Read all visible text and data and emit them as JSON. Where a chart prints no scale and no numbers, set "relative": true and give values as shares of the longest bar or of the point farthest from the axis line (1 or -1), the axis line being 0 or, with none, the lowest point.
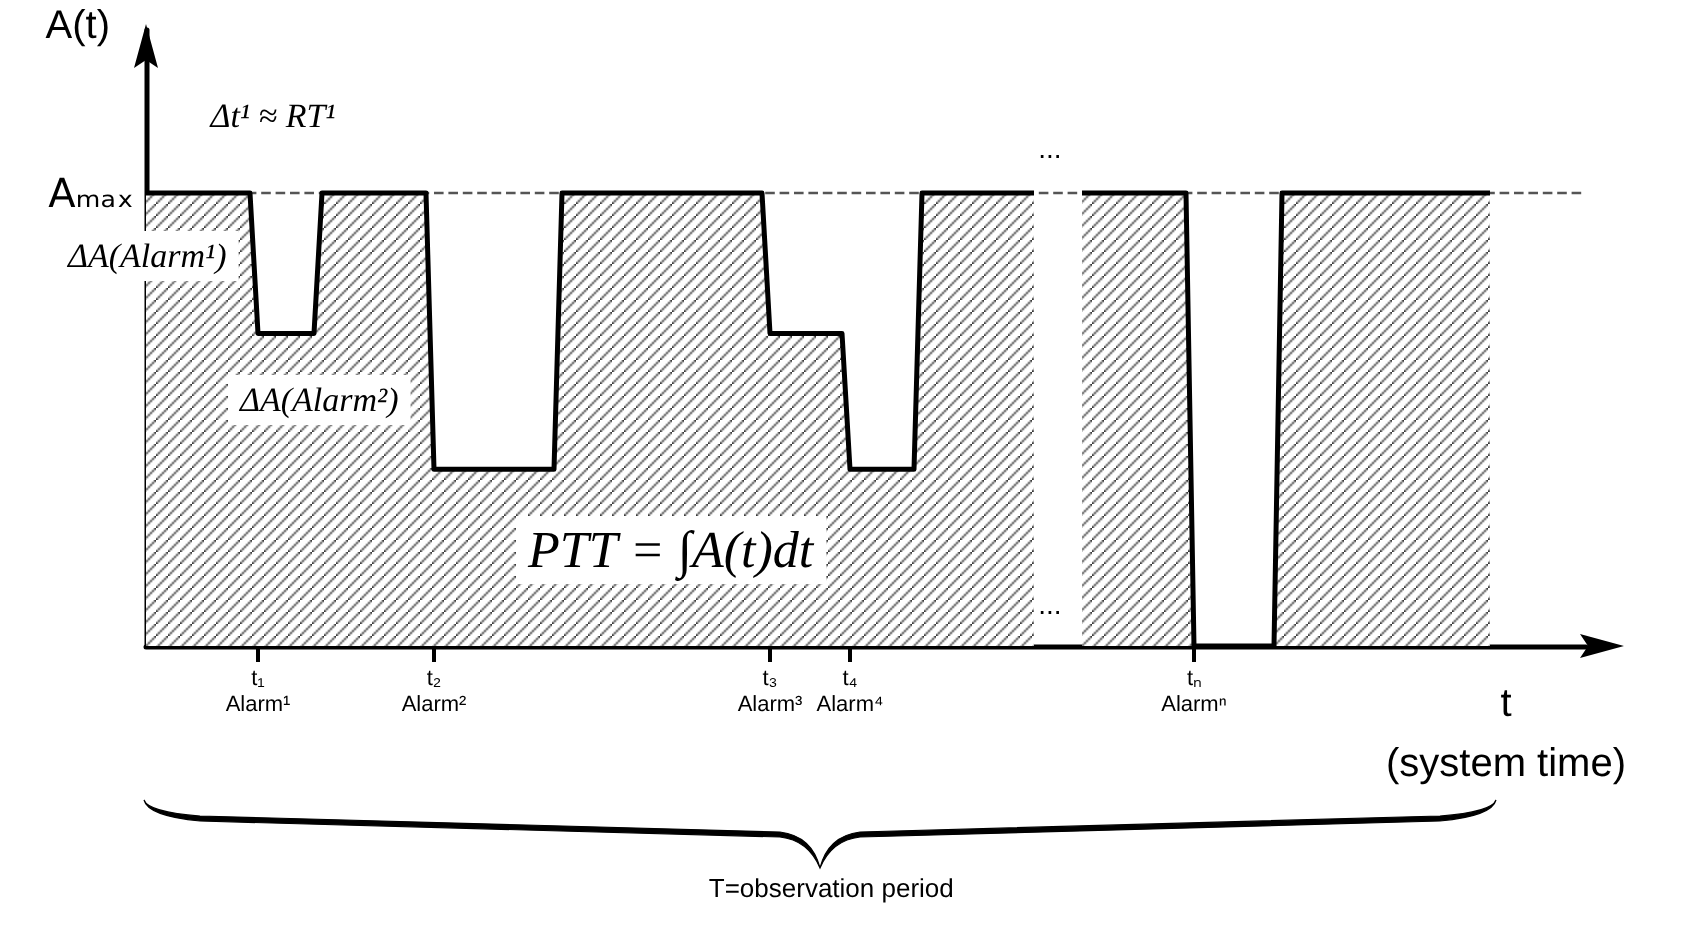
{
  "chart_data": {
    "type": "area",
    "relative": true,
    "ylabel": "A(t)",
    "xlabel": "t\n(system time)",
    "categories": [
      null,
      null,
      null,
      null,
      null,
      null,
      null,
      null,
      null,
      null,
      null,
      null,
      null,
      null,
      "t₁\nAlarm¹",
      null,
      null,
      null,
      null,
      null,
      null,
      null,
      null,
      null,
      null,
      null,
      null,
      null,
      null,
      null,
      null,
      null,
      null,
      null,
      null,
      null,
      "t₂\nAlarm²",
      null,
      null,
      null,
      null,
      null,
      null,
      null,
      null,
      null,
      null,
      null,
      null,
      null,
      null,
      null,
      null,
      null,
      null,
      null,
      null,
      null,
      null,
      null,
      null,
      null,
      null,
      null,
      null,
      null,
      null,
      null,
      null,
      null,
      null,
      null,
      null,
      null,
      null,
      null,
      null,
      null,
      "t₃\nAlarm³",
      null,
      null,
      null,
      null,
      null,
      null,
      null,
      null,
      null,
      "t₄\nAlarm⁴",
      null,
      null,
      null,
      null,
      null,
      null,
      null,
      null,
      null,
      null,
      null,
      null,
      null,
      null,
      null,
      null,
      null,
      null,
      null,
      null,
      null,
      null,
      null,
      null,
      null,
      null,
      null,
      null,
      null,
      null,
      null,
      null,
      null,
      null,
      null,
      null,
      null,
      null,
      null,
      null,
      null,
      null,
      "tₙ\nAlarmⁿ",
      null,
      null,
      null,
      null,
      null,
      null,
      null,
      null,
      null,
      null,
      null,
      null,
      null,
      null,
      null,
      null,
      null,
      null,
      null,
      null,
      null,
      null,
      null,
      null,
      null,
      null,
      null,
      null,
      null,
      null,
      null,
      null,
      null,
      null,
      null,
      null,
      null,
      null,
      null,
      null,
      null,
      null,
      null,
      null,
      null,
      null,
      null,
      null,
      null
    ],
    "series": [
      {
        "color": "#000000",
        "values": [
          1,
          1,
          1,
          1,
          1,
          1,
          1,
          1,
          1,
          1,
          1,
          1,
          1,
          1,
          0.69,
          0.69,
          0.69,
          0.69,
          0.69,
          0.69,
          0.69,
          0.69,
          1,
          1,
          1,
          1,
          1,
          1,
          1,
          1,
          1,
          1,
          1,
          1,
          1,
          1,
          0.39,
          0.39,
          0.39,
          0.39,
          0.39,
          0.39,
          0.39,
          0.39,
          0.39,
          0.39,
          0.39,
          0.39,
          0.39,
          0.39,
          0.39,
          0.39,
          1,
          1,
          1,
          1,
          1,
          1,
          1,
          1,
          1,
          1,
          1,
          1,
          1,
          1,
          1,
          1,
          1,
          1,
          1,
          1,
          1,
          1,
          1,
          1,
          1,
          1,
          0.69,
          0.69,
          0.69,
          0.69,
          0.69,
          0.69,
          0.69,
          0.69,
          0.69,
          0.69,
          0.39,
          0.39,
          0.39,
          0.39,
          0.39,
          0.39,
          0.39,
          0.39,
          0.39,
          1,
          1,
          1,
          1,
          1,
          1,
          1,
          1,
          1,
          1,
          1,
          1,
          1,
          1,
          1,
          null,
          null,
          null,
          null,
          null,
          1,
          1,
          1,
          1,
          1,
          1,
          1,
          1,
          1,
          1,
          1,
          1,
          1,
          1,
          0,
          0,
          0,
          0,
          0,
          0,
          0,
          0,
          0,
          0,
          0,
          1,
          1,
          1,
          1,
          1,
          1,
          1,
          1,
          1,
          1,
          1,
          1,
          1,
          1,
          1,
          1,
          1,
          1,
          1,
          1,
          1,
          1,
          1,
          1,
          1,
          1,
          1,
          null,
          null,
          null,
          null,
          null,
          null,
          null,
          null,
          null,
          null,
          null,
          null
        ]
      }
    ],
    "ref_lines": [
      {
        "axis": "y",
        "value": 1,
        "label": "Aₘₐₓ",
        "color": "#555555",
        "line_style": "dashed"
      }
    ],
    "annotations": [
      "Δt¹ ≈ RT¹",
      "ΔA(Alarm¹)",
      "ΔA(Alarm²)",
      "PTT = ∫A(t)dt",
      "...",
      "...",
      "T=observation period"
    ]
  }
}
